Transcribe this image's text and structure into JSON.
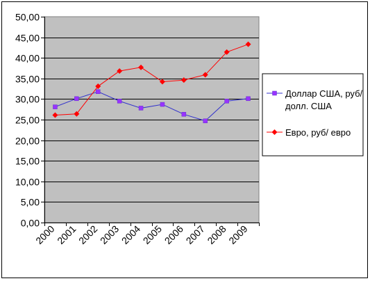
{
  "chart_data": {
    "type": "line",
    "categories": [
      "2000",
      "2001",
      "2002",
      "2003",
      "2004",
      "2005",
      "2006",
      "2007",
      "2008",
      "2009"
    ],
    "ylim": [
      0,
      50
    ],
    "yticks": [
      "0,00",
      "5,00",
      "10,00",
      "15,00",
      "20,00",
      "25,00",
      "30,00",
      "35,00",
      "40,00",
      "45,00",
      "50,00"
    ],
    "grid": true,
    "legend_position": "right",
    "plot_background": "#c0c0c0",
    "series": [
      {
        "name": "Доллар США, руб/ долл. США",
        "name_lines": [
          "Доллар США, руб/",
          "долл. США"
        ],
        "color": "#3333cc",
        "marker_color": "#9933ff",
        "marker": "square",
        "values": [
          28.1,
          30.1,
          31.8,
          29.5,
          27.8,
          28.7,
          26.3,
          24.7,
          29.5,
          30.1
        ]
      },
      {
        "name": "Евро, руб/ евро",
        "name_lines": [
          "Евро, руб/ евро"
        ],
        "color": "#ff0000",
        "marker_color": "#ff0000",
        "marker": "diamond",
        "values": [
          26.1,
          26.4,
          33.1,
          36.8,
          37.7,
          34.2,
          34.6,
          35.9,
          41.4,
          43.3
        ]
      }
    ]
  }
}
